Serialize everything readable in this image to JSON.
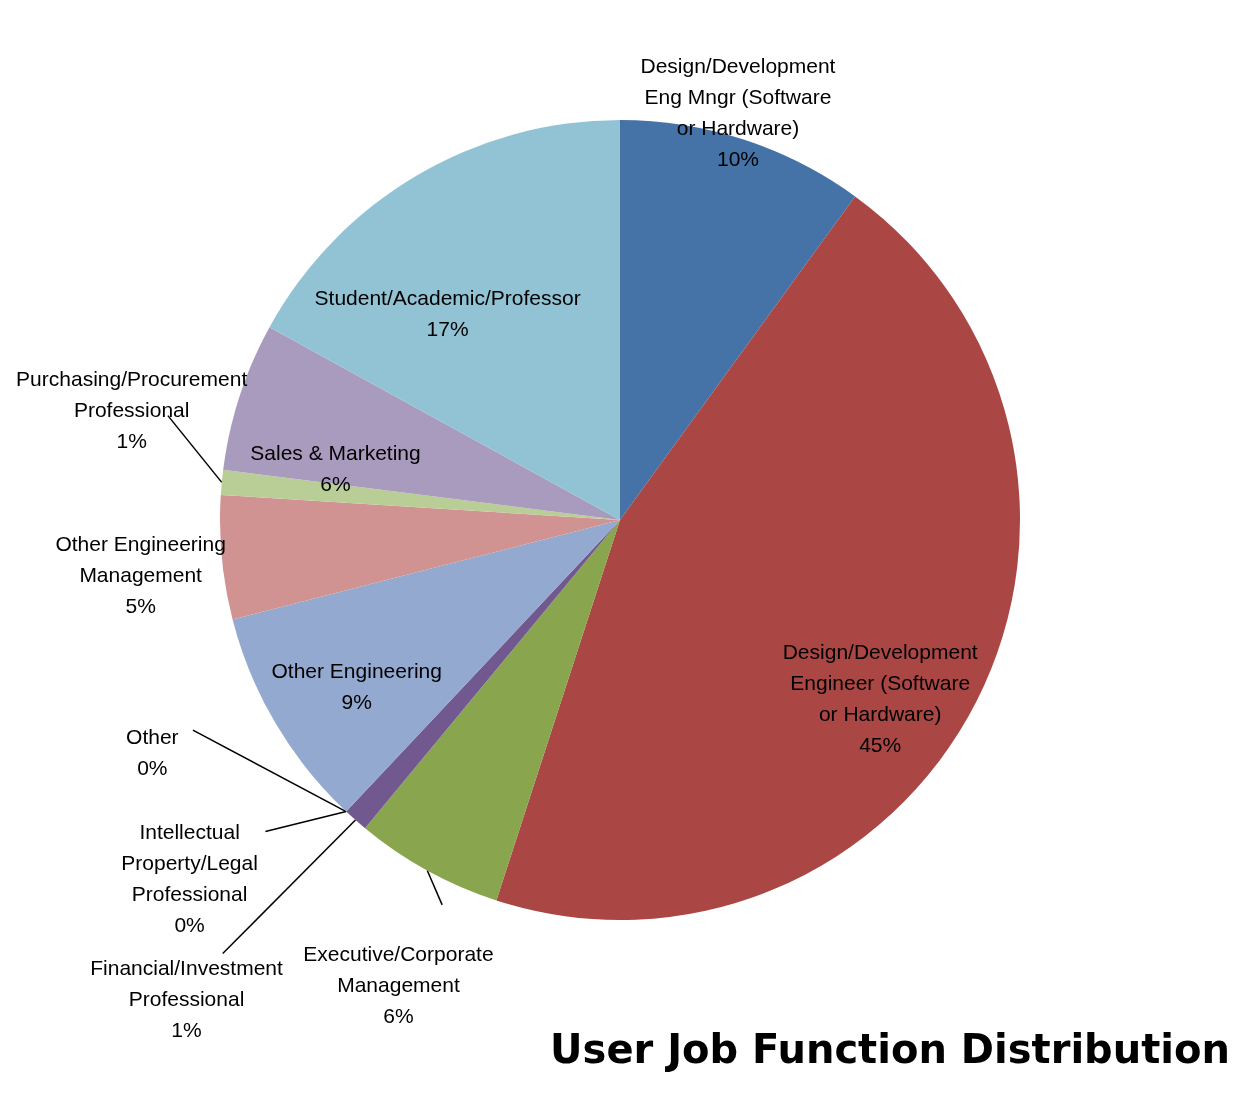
{
  "chart_data": {
    "type": "pie",
    "title": "User Job Function Distribution",
    "categories": [
      "Design/Development Eng Mngr (Software or Hardware)",
      "Design/Development Engineer (Software or Hardware)",
      "Executive/Corporate Management",
      "Financial/Investment Professional",
      "Intellectual Property/Legal Professional",
      "Other",
      "Other Engineering",
      "Other Engineering Management",
      "Purchasing/Procurement Professional",
      "Sales & Marketing",
      "Student/Academic/Professor"
    ],
    "values": [
      10,
      45,
      6,
      1,
      0,
      0,
      9,
      5,
      1,
      6,
      17
    ],
    "colors": [
      "#4572a7",
      "#aa4643",
      "#89a54e",
      "#71588f",
      "#4198af",
      "#db843d",
      "#93a9cf",
      "#d19392",
      "#b9cd96",
      "#a99bbd",
      "#92c3d4"
    ],
    "value_labels": [
      "10%",
      "45%",
      "6%",
      "1%",
      "0%",
      "0%",
      "9%",
      "5%",
      "1%",
      "6%",
      "17%"
    ]
  }
}
